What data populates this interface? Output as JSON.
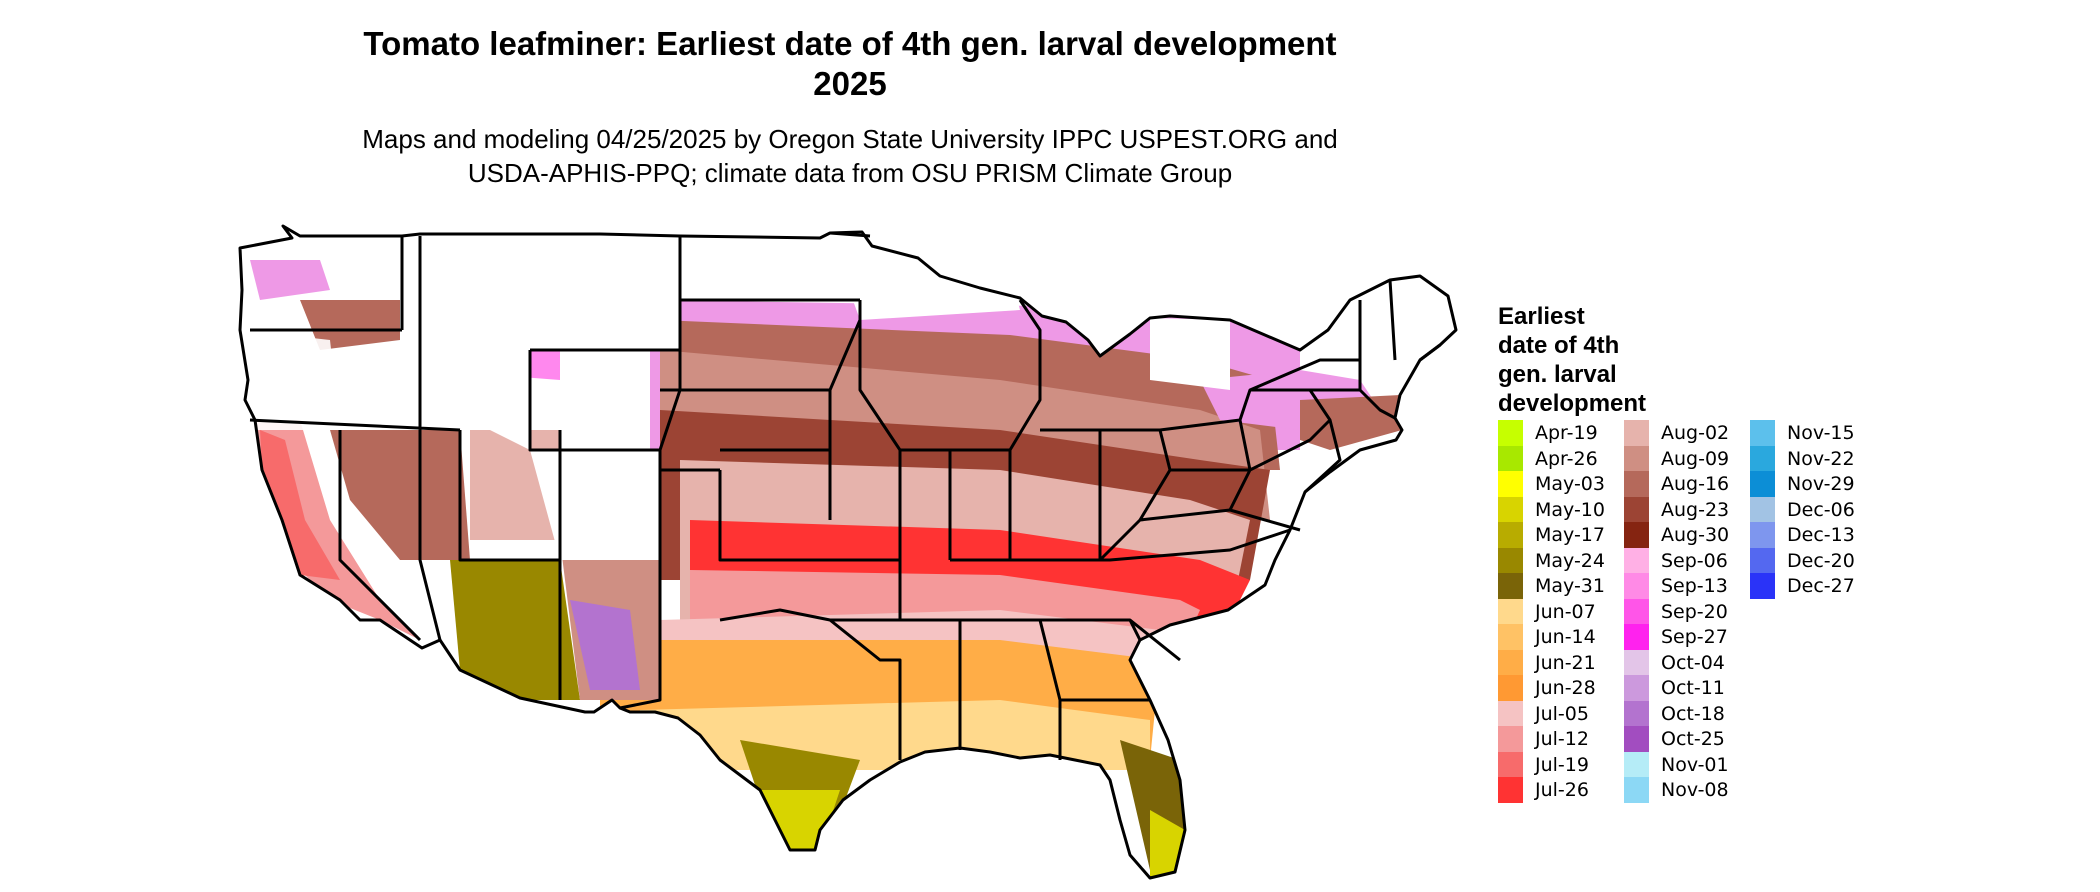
{
  "title": {
    "line1": "Tomato leafminer: Earliest date of 4th gen. larval development",
    "line2": "2025"
  },
  "subtitle": {
    "line1": "Maps and modeling 04/25/2025 by Oregon State University IPPC USPEST.ORG and",
    "line2": "USDA-APHIS-PPQ; climate data from OSU PRISM Climate Group"
  },
  "legend": {
    "title_lines": [
      "Earliest",
      "date of 4th",
      "gen. larval",
      "development"
    ],
    "columns": [
      [
        {
          "label": "Apr-19",
          "color": "#c6ff00"
        },
        {
          "label": "Apr-26",
          "color": "#a8e800"
        },
        {
          "label": "May-03",
          "color": "#ffff00"
        },
        {
          "label": "May-10",
          "color": "#d8d400"
        },
        {
          "label": "May-17",
          "color": "#b8ac00"
        },
        {
          "label": "May-24",
          "color": "#998800"
        },
        {
          "label": "May-31",
          "color": "#7a6408"
        },
        {
          "label": "Jun-07",
          "color": "#ffd98c"
        },
        {
          "label": "Jun-14",
          "color": "#ffc265"
        },
        {
          "label": "Jun-21",
          "color": "#ffad47"
        },
        {
          "label": "Jun-28",
          "color": "#ff9933"
        },
        {
          "label": "Jul-05",
          "color": "#f5c3c3"
        },
        {
          "label": "Jul-12",
          "color": "#f4999a"
        },
        {
          "label": "Jul-19",
          "color": "#f76b6b"
        },
        {
          "label": "Jul-26",
          "color": "#ff3333"
        }
      ],
      [
        {
          "label": "Aug-02",
          "color": "#e6b3ac"
        },
        {
          "label": "Aug-09",
          "color": "#cf8f83"
        },
        {
          "label": "Aug-16",
          "color": "#b5695b"
        },
        {
          "label": "Aug-23",
          "color": "#9c4434"
        },
        {
          "label": "Aug-30",
          "color": "#852411"
        },
        {
          "label": "Sep-06",
          "color": "#ffb0e5"
        },
        {
          "label": "Sep-13",
          "color": "#ff8ae6"
        },
        {
          "label": "Sep-20",
          "color": "#ff55e8"
        },
        {
          "label": "Sep-27",
          "color": "#ff22ee"
        },
        {
          "label": "Oct-04",
          "color": "#e3c5e8"
        },
        {
          "label": "Oct-11",
          "color": "#cc99dd"
        },
        {
          "label": "Oct-18",
          "color": "#b373cf"
        },
        {
          "label": "Oct-25",
          "color": "#a24dc0"
        },
        {
          "label": "Nov-01",
          "color": "#b5ecf7"
        },
        {
          "label": "Nov-08",
          "color": "#8cd8f5"
        }
      ],
      [
        {
          "label": "Nov-15",
          "color": "#5cc0ec"
        },
        {
          "label": "Nov-22",
          "color": "#2aa8de"
        },
        {
          "label": "Nov-29",
          "color": "#0c8ed6"
        },
        {
          "label": "Dec-06",
          "color": "#a2c3e4"
        },
        {
          "label": "Dec-13",
          "color": "#7e96ee"
        },
        {
          "label": "Dec-20",
          "color": "#5468f0"
        },
        {
          "label": "Dec-27",
          "color": "#2a33f8"
        }
      ]
    ]
  }
}
